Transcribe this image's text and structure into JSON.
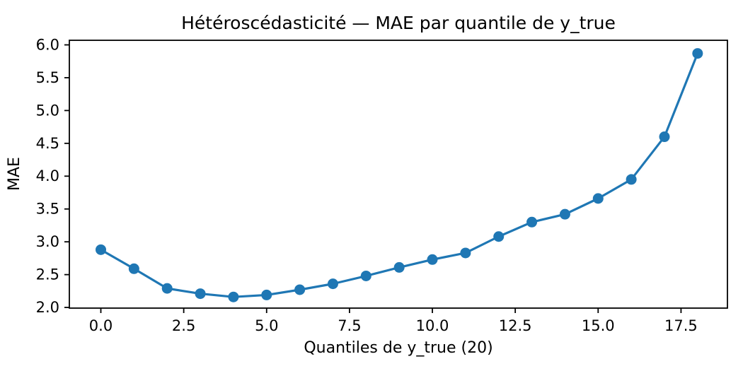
{
  "chart_data": {
    "type": "line",
    "title": "Hétéroscédasticité — MAE par quantile de y_true",
    "xlabel": "Quantiles de y_true (20)",
    "ylabel": "MAE",
    "x": [
      0,
      1,
      2,
      3,
      4,
      5,
      6,
      7,
      8,
      9,
      10,
      11,
      12,
      13,
      14,
      15,
      16,
      17,
      18
    ],
    "values": [
      2.88,
      2.59,
      2.29,
      2.21,
      2.16,
      2.19,
      2.27,
      2.36,
      2.48,
      2.61,
      2.73,
      2.83,
      3.08,
      3.3,
      3.42,
      3.66,
      3.95,
      4.6,
      5.87
    ],
    "xlim": [
      -0.95,
      18.9
    ],
    "ylim": [
      1.99,
      6.07
    ],
    "xticks": {
      "values": [
        0,
        2.5,
        5,
        7.5,
        10,
        12.5,
        15,
        17.5
      ],
      "labels": [
        "0.0",
        "2.5",
        "5.0",
        "7.5",
        "10.0",
        "12.5",
        "15.0",
        "17.5"
      ]
    },
    "yticks": {
      "values": [
        2.0,
        2.5,
        3.0,
        3.5,
        4.0,
        4.5,
        5.0,
        5.5,
        6.0
      ],
      "labels": [
        "2.0",
        "2.5",
        "3.0",
        "3.5",
        "4.0",
        "4.5",
        "5.0",
        "5.5",
        "6.0"
      ]
    },
    "grid": false,
    "legend": "none",
    "line_color": "#1f77b4",
    "marker": "circle",
    "spine_color": "#000000",
    "background_color": "#ffffff"
  }
}
